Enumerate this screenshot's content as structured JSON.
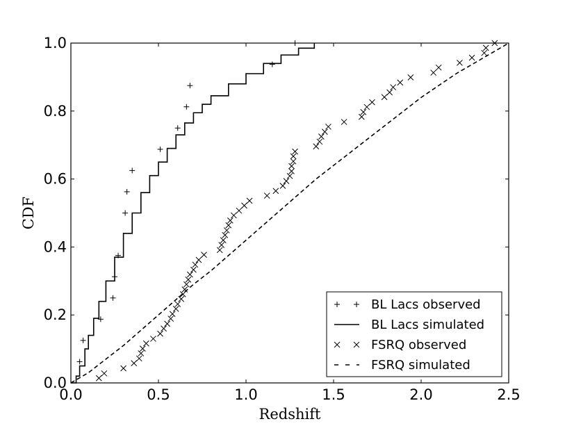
{
  "chart_data": {
    "type": "scatter",
    "title": "",
    "xlabel": "Redshift",
    "ylabel": "CDF",
    "xlim": [
      0.0,
      2.5
    ],
    "ylim": [
      0.0,
      1.0
    ],
    "xticks": [
      "0.0",
      "0.5",
      "1.0",
      "1.5",
      "2.0",
      "2.5"
    ],
    "yticks": [
      "0.0",
      "0.2",
      "0.4",
      "0.6",
      "0.8",
      "1.0"
    ],
    "legend_position": "lower-right",
    "series": [
      {
        "name": "BL Lacs observed",
        "style": "plus-markers",
        "x": [
          0.05,
          0.07,
          0.17,
          0.24,
          0.25,
          0.27,
          0.31,
          0.32,
          0.35,
          0.51,
          0.61,
          0.66,
          0.68,
          1.15,
          1.28
        ],
        "y": [
          0.0625,
          0.125,
          0.1875,
          0.25,
          0.3125,
          0.375,
          0.5,
          0.5625,
          0.625,
          0.6875,
          0.75,
          0.8125,
          0.875,
          0.9375,
          1.0
        ]
      },
      {
        "name": "BL Lacs simulated",
        "style": "solid-step",
        "x": [
          0.0,
          0.03,
          0.05,
          0.08,
          0.1,
          0.13,
          0.16,
          0.2,
          0.25,
          0.3,
          0.35,
          0.4,
          0.45,
          0.5,
          0.55,
          0.6,
          0.65,
          0.7,
          0.75,
          0.8,
          0.9,
          1.0,
          1.1,
          1.2,
          1.3,
          1.39
        ],
        "y": [
          0.0,
          0.02,
          0.05,
          0.1,
          0.14,
          0.19,
          0.24,
          0.3,
          0.37,
          0.44,
          0.5,
          0.56,
          0.61,
          0.65,
          0.69,
          0.73,
          0.765,
          0.795,
          0.82,
          0.845,
          0.88,
          0.91,
          0.94,
          0.965,
          0.985,
          1.0
        ]
      },
      {
        "name": "FSRQ observed",
        "style": "x-markers",
        "x": [
          0.16,
          0.19,
          0.3,
          0.36,
          0.39,
          0.4,
          0.41,
          0.43,
          0.47,
          0.51,
          0.53,
          0.55,
          0.57,
          0.58,
          0.6,
          0.61,
          0.63,
          0.64,
          0.65,
          0.66,
          0.67,
          0.68,
          0.7,
          0.71,
          0.73,
          0.76,
          0.85,
          0.86,
          0.87,
          0.88,
          0.89,
          0.9,
          0.91,
          0.93,
          0.96,
          0.99,
          1.02,
          1.12,
          1.17,
          1.21,
          1.23,
          1.25,
          1.26,
          1.26,
          1.27,
          1.27,
          1.28,
          1.4,
          1.42,
          1.43,
          1.45,
          1.47,
          1.56,
          1.66,
          1.67,
          1.69,
          1.72,
          1.79,
          1.82,
          1.84,
          1.88,
          1.94,
          2.07,
          2.1,
          2.22,
          2.29,
          2.36,
          2.37,
          2.42
        ],
        "y": [
          0.014,
          0.028,
          0.043,
          0.058,
          0.072,
          0.087,
          0.101,
          0.116,
          0.13,
          0.145,
          0.16,
          0.174,
          0.189,
          0.203,
          0.218,
          0.232,
          0.247,
          0.261,
          0.275,
          0.29,
          0.304,
          0.319,
          0.333,
          0.348,
          0.362,
          0.377,
          0.391,
          0.406,
          0.42,
          0.435,
          0.449,
          0.464,
          0.478,
          0.493,
          0.507,
          0.522,
          0.536,
          0.551,
          0.565,
          0.58,
          0.594,
          0.609,
          0.623,
          0.638,
          0.652,
          0.667,
          0.681,
          0.696,
          0.71,
          0.725,
          0.739,
          0.754,
          0.768,
          0.783,
          0.797,
          0.812,
          0.826,
          0.841,
          0.855,
          0.87,
          0.884,
          0.899,
          0.913,
          0.928,
          0.942,
          0.957,
          0.971,
          0.986,
          1.0
        ]
      },
      {
        "name": "FSRQ simulated",
        "style": "dashed-line",
        "x": [
          0.0,
          0.1,
          0.2,
          0.3,
          0.4,
          0.5,
          0.6,
          0.7,
          0.8,
          0.9,
          1.0,
          1.1,
          1.2,
          1.3,
          1.4,
          1.5,
          1.6,
          1.7,
          1.8,
          1.9,
          2.0,
          2.1,
          2.2,
          2.3,
          2.4,
          2.5
        ],
        "y": [
          0.0,
          0.03,
          0.07,
          0.11,
          0.155,
          0.2,
          0.245,
          0.29,
          0.33,
          0.375,
          0.42,
          0.465,
          0.51,
          0.555,
          0.6,
          0.64,
          0.68,
          0.72,
          0.76,
          0.8,
          0.84,
          0.875,
          0.91,
          0.94,
          0.97,
          1.0
        ]
      }
    ]
  }
}
